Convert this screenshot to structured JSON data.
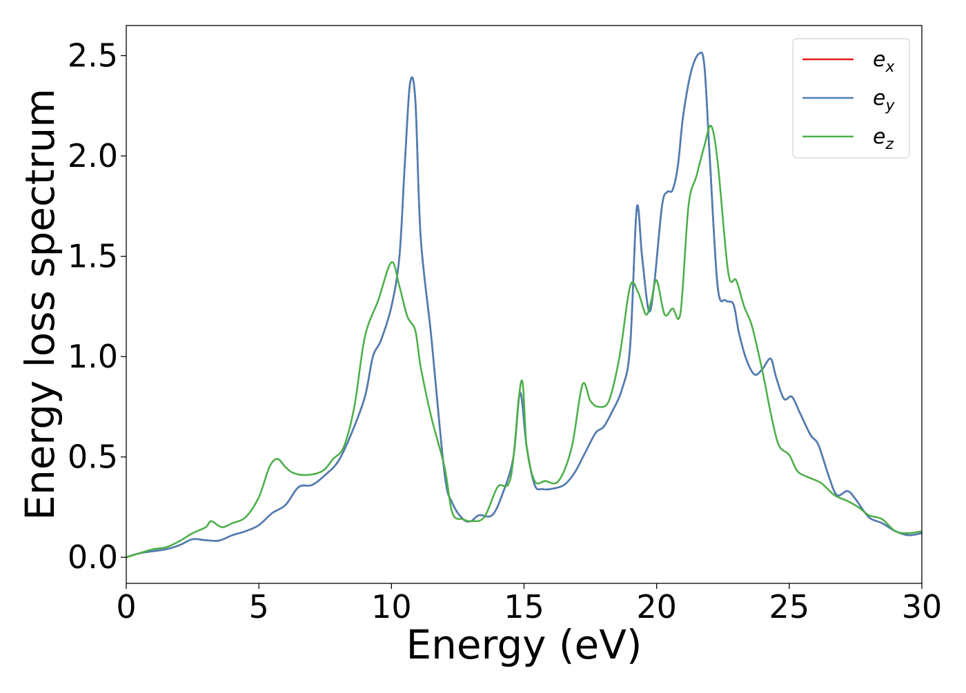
{
  "chart_data": {
    "type": "line",
    "title": "",
    "xlabel": "Energy (eV)",
    "ylabel": "Energy loss spectrum",
    "xlim": [
      0,
      30
    ],
    "ylim": [
      -0.13,
      2.65
    ],
    "xticks": [
      0,
      5,
      10,
      15,
      20,
      25,
      30
    ],
    "xtick_labels": [
      "0",
      "5",
      "10",
      "15",
      "20",
      "25",
      "30"
    ],
    "yticks": [
      0.0,
      0.5,
      1.0,
      1.5,
      2.0,
      2.5
    ],
    "ytick_labels": [
      "0.0",
      "0.5",
      "1.0",
      "1.5",
      "2.0",
      "2.5"
    ],
    "grid": false,
    "legend": "top-right",
    "series": [
      {
        "name": "e_x",
        "label_main": "e",
        "label_sub": "x",
        "color": "#e41a1c",
        "x": [
          0,
          0.5,
          1,
          1.5,
          2,
          2.5,
          3,
          3.5,
          4,
          4.5,
          5,
          5.5,
          6,
          6.5,
          7,
          7.5,
          8,
          8.5,
          9,
          9.3,
          9.6,
          10,
          10.3,
          10.5,
          10.7,
          10.9,
          11.1,
          11.5,
          12,
          12.3,
          12.7,
          13,
          13.3,
          13.8,
          14.2,
          14.6,
          14.85,
          15.1,
          15.4,
          15.7,
          16,
          16.5,
          16.9,
          17.3,
          17.7,
          18,
          18.3,
          18.7,
          19,
          19.25,
          19.45,
          19.7,
          19.9,
          20.2,
          20.4,
          20.6,
          20.8,
          21,
          21.3,
          21.6,
          21.8,
          22,
          22.3,
          22.6,
          22.9,
          23.1,
          23.4,
          23.7,
          24,
          24.3,
          24.5,
          24.8,
          25.1,
          25.4,
          25.8,
          26.1,
          26.5,
          26.8,
          27.2,
          27.5,
          28,
          28.5,
          29,
          29.5,
          30
        ],
        "y": [
          0.0,
          0.02,
          0.03,
          0.04,
          0.06,
          0.09,
          0.085,
          0.083,
          0.11,
          0.13,
          0.16,
          0.22,
          0.26,
          0.35,
          0.36,
          0.41,
          0.48,
          0.62,
          0.8,
          1.0,
          1.08,
          1.25,
          1.5,
          1.95,
          2.36,
          2.28,
          1.6,
          1.1,
          0.42,
          0.27,
          0.19,
          0.18,
          0.21,
          0.21,
          0.32,
          0.5,
          0.82,
          0.55,
          0.36,
          0.34,
          0.34,
          0.36,
          0.42,
          0.52,
          0.62,
          0.65,
          0.72,
          0.84,
          1.05,
          1.74,
          1.5,
          1.23,
          1.35,
          1.75,
          1.82,
          1.83,
          1.95,
          2.2,
          2.42,
          2.51,
          2.45,
          2.0,
          1.35,
          1.28,
          1.26,
          1.12,
          0.98,
          0.91,
          0.94,
          0.99,
          0.9,
          0.79,
          0.8,
          0.72,
          0.61,
          0.56,
          0.4,
          0.31,
          0.33,
          0.29,
          0.2,
          0.17,
          0.13,
          0.11,
          0.12
        ]
      },
      {
        "name": "e_y",
        "label_main": "e",
        "label_sub": "y",
        "color": "#4a7fb5",
        "x": [
          0,
          0.5,
          1,
          1.5,
          2,
          2.5,
          3,
          3.5,
          4,
          4.5,
          5,
          5.5,
          6,
          6.5,
          7,
          7.5,
          8,
          8.5,
          9,
          9.3,
          9.6,
          10,
          10.3,
          10.5,
          10.7,
          10.9,
          11.1,
          11.5,
          12,
          12.3,
          12.7,
          13,
          13.3,
          13.8,
          14.2,
          14.6,
          14.85,
          15.1,
          15.4,
          15.7,
          16,
          16.5,
          16.9,
          17.3,
          17.7,
          18,
          18.3,
          18.7,
          19,
          19.25,
          19.45,
          19.7,
          19.9,
          20.2,
          20.4,
          20.6,
          20.8,
          21,
          21.3,
          21.6,
          21.8,
          22,
          22.3,
          22.6,
          22.9,
          23.1,
          23.4,
          23.7,
          24,
          24.3,
          24.5,
          24.8,
          25.1,
          25.4,
          25.8,
          26.1,
          26.5,
          26.8,
          27.2,
          27.5,
          28,
          28.5,
          29,
          29.5,
          30
        ],
        "y": [
          0.0,
          0.02,
          0.03,
          0.04,
          0.06,
          0.09,
          0.085,
          0.083,
          0.11,
          0.13,
          0.16,
          0.22,
          0.26,
          0.35,
          0.36,
          0.41,
          0.48,
          0.62,
          0.8,
          1.0,
          1.08,
          1.25,
          1.5,
          1.95,
          2.36,
          2.28,
          1.6,
          1.1,
          0.42,
          0.27,
          0.19,
          0.18,
          0.21,
          0.21,
          0.32,
          0.5,
          0.82,
          0.55,
          0.36,
          0.34,
          0.34,
          0.36,
          0.42,
          0.52,
          0.62,
          0.65,
          0.72,
          0.84,
          1.05,
          1.74,
          1.5,
          1.23,
          1.35,
          1.75,
          1.82,
          1.83,
          1.95,
          2.2,
          2.42,
          2.51,
          2.45,
          2.0,
          1.35,
          1.28,
          1.26,
          1.12,
          0.98,
          0.91,
          0.94,
          0.99,
          0.9,
          0.79,
          0.8,
          0.72,
          0.61,
          0.56,
          0.4,
          0.31,
          0.33,
          0.29,
          0.2,
          0.17,
          0.13,
          0.11,
          0.12
        ]
      },
      {
        "name": "e_z",
        "label_main": "e",
        "label_sub": "z",
        "color": "#4daf4a",
        "x": [
          0,
          0.5,
          1,
          1.5,
          2,
          2.5,
          3,
          3.2,
          3.6,
          4,
          4.5,
          5,
          5.4,
          5.7,
          6,
          6.3,
          6.8,
          7.4,
          7.8,
          8.2,
          8.6,
          9,
          9.5,
          10,
          10.3,
          10.6,
          10.9,
          11.1,
          11.5,
          12,
          12.3,
          12.7,
          13,
          13.5,
          14,
          14.5,
          14.9,
          15.1,
          15.4,
          15.8,
          16.3,
          16.8,
          17.2,
          17.5,
          17.8,
          18.2,
          18.6,
          19,
          19.3,
          19.6,
          19.8,
          20,
          20.3,
          20.6,
          20.9,
          21.2,
          21.5,
          21.8,
          22.05,
          22.3,
          22.7,
          23,
          23.3,
          23.6,
          24,
          24.3,
          24.6,
          25,
          25.3,
          25.7,
          26.2,
          26.7,
          27.2,
          27.6,
          28,
          28.5,
          29,
          29.5,
          30
        ],
        "y": [
          0.0,
          0.02,
          0.04,
          0.05,
          0.08,
          0.12,
          0.15,
          0.18,
          0.15,
          0.17,
          0.2,
          0.3,
          0.45,
          0.49,
          0.45,
          0.42,
          0.41,
          0.43,
          0.49,
          0.55,
          0.75,
          1.1,
          1.28,
          1.47,
          1.35,
          1.2,
          1.13,
          0.95,
          0.7,
          0.45,
          0.22,
          0.19,
          0.18,
          0.2,
          0.35,
          0.4,
          0.88,
          0.55,
          0.38,
          0.38,
          0.38,
          0.55,
          0.86,
          0.78,
          0.75,
          0.78,
          1.0,
          1.35,
          1.32,
          1.21,
          1.28,
          1.38,
          1.21,
          1.24,
          1.22,
          1.75,
          1.9,
          2.05,
          2.15,
          1.97,
          1.42,
          1.38,
          1.25,
          1.15,
          0.92,
          0.72,
          0.56,
          0.51,
          0.43,
          0.4,
          0.37,
          0.31,
          0.28,
          0.25,
          0.21,
          0.19,
          0.13,
          0.12,
          0.13
        ]
      }
    ]
  }
}
